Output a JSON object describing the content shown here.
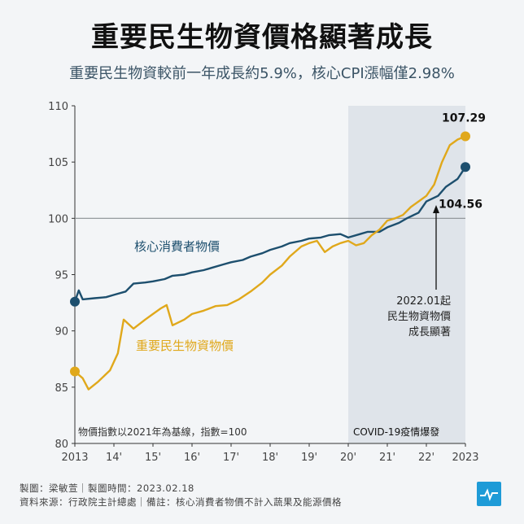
{
  "header": {
    "title": "重要民生物資價格顯著成長",
    "subtitle": "重要民生物資較前一年成長約5.9%，核心CPI漲幅僅2.98%"
  },
  "chart_data": {
    "type": "line",
    "x_ticks": [
      "2013",
      "14'",
      "15'",
      "16'",
      "17'",
      "18'",
      "19'",
      "20'",
      "21'",
      "22'",
      "2023"
    ],
    "ylim": [
      80,
      110
    ],
    "y_ticks": [
      80,
      85,
      90,
      95,
      100,
      105,
      110
    ],
    "grid": true,
    "reference_line": 100,
    "series": [
      {
        "name": "核心消費者物價",
        "color": "#1d4f6e",
        "label_value": "104.56",
        "values": [
          [
            2013.0,
            92.6
          ],
          [
            2013.1,
            93.6
          ],
          [
            2013.2,
            92.8
          ],
          [
            2013.5,
            92.9
          ],
          [
            2013.8,
            93.0
          ],
          [
            2014.0,
            93.2
          ],
          [
            2014.3,
            93.5
          ],
          [
            2014.5,
            94.2
          ],
          [
            2014.8,
            94.3
          ],
          [
            2015.0,
            94.4
          ],
          [
            2015.3,
            94.6
          ],
          [
            2015.5,
            94.9
          ],
          [
            2015.8,
            95.0
          ],
          [
            2016.0,
            95.2
          ],
          [
            2016.3,
            95.4
          ],
          [
            2016.5,
            95.6
          ],
          [
            2016.8,
            95.9
          ],
          [
            2017.0,
            96.1
          ],
          [
            2017.3,
            96.3
          ],
          [
            2017.5,
            96.6
          ],
          [
            2017.8,
            96.9
          ],
          [
            2018.0,
            97.2
          ],
          [
            2018.3,
            97.5
          ],
          [
            2018.5,
            97.8
          ],
          [
            2018.8,
            98.0
          ],
          [
            2019.0,
            98.2
          ],
          [
            2019.3,
            98.3
          ],
          [
            2019.5,
            98.5
          ],
          [
            2019.8,
            98.6
          ],
          [
            2020.0,
            98.3
          ],
          [
            2020.3,
            98.6
          ],
          [
            2020.5,
            98.8
          ],
          [
            2020.8,
            98.8
          ],
          [
            2021.0,
            99.2
          ],
          [
            2021.3,
            99.6
          ],
          [
            2021.5,
            100.0
          ],
          [
            2021.8,
            100.5
          ],
          [
            2022.0,
            101.5
          ],
          [
            2022.3,
            102.0
          ],
          [
            2022.5,
            102.8
          ],
          [
            2022.8,
            103.5
          ],
          [
            2023.0,
            104.56
          ]
        ]
      },
      {
        "name": "重要民生物資物價",
        "color": "#e0a81b",
        "label_value": "107.29",
        "values": [
          [
            2013.0,
            86.4
          ],
          [
            2013.2,
            85.8
          ],
          [
            2013.35,
            84.8
          ],
          [
            2013.6,
            85.5
          ],
          [
            2013.9,
            86.5
          ],
          [
            2014.1,
            88.0
          ],
          [
            2014.25,
            91.0
          ],
          [
            2014.5,
            90.2
          ],
          [
            2014.8,
            91.0
          ],
          [
            2015.0,
            91.5
          ],
          [
            2015.2,
            92.0
          ],
          [
            2015.35,
            92.3
          ],
          [
            2015.5,
            90.5
          ],
          [
            2015.8,
            91.0
          ],
          [
            2016.0,
            91.5
          ],
          [
            2016.3,
            91.8
          ],
          [
            2016.6,
            92.2
          ],
          [
            2016.9,
            92.3
          ],
          [
            2017.2,
            92.8
          ],
          [
            2017.5,
            93.5
          ],
          [
            2017.8,
            94.3
          ],
          [
            2018.0,
            95.0
          ],
          [
            2018.3,
            95.8
          ],
          [
            2018.5,
            96.6
          ],
          [
            2018.8,
            97.5
          ],
          [
            2019.0,
            97.8
          ],
          [
            2019.2,
            98.0
          ],
          [
            2019.4,
            97.0
          ],
          [
            2019.6,
            97.5
          ],
          [
            2019.8,
            97.8
          ],
          [
            2020.0,
            98.0
          ],
          [
            2020.2,
            97.6
          ],
          [
            2020.4,
            97.8
          ],
          [
            2020.6,
            98.5
          ],
          [
            2020.8,
            99.0
          ],
          [
            2021.0,
            99.8
          ],
          [
            2021.2,
            100.0
          ],
          [
            2021.4,
            100.3
          ],
          [
            2021.6,
            101.0
          ],
          [
            2021.8,
            101.5
          ],
          [
            2022.0,
            102.0
          ],
          [
            2022.2,
            103.0
          ],
          [
            2022.4,
            105.0
          ],
          [
            2022.6,
            106.5
          ],
          [
            2022.8,
            107.0
          ],
          [
            2023.0,
            107.29
          ]
        ]
      }
    ],
    "series_labels": [
      "核心消費者物價",
      "重要民生物資物價"
    ],
    "covid_shading": {
      "from": 2020.0,
      "to": 2023.0,
      "label": "COVID-19疫情爆發"
    },
    "annotation": {
      "x": 2022.0,
      "text_lines": [
        "2022.01起",
        "民生物資物價",
        "成長顯著"
      ]
    },
    "note": "物價指數以2021年為基線，指數=100"
  },
  "footer": {
    "line1": "製圖：梁敏萱｜製圖時間：2023.02.18",
    "line2": "資料來源：行政院主計總處｜備註：核心消費者物價不計入蔬果及能源價格"
  },
  "colors": {
    "core": "#1d4f6e",
    "food": "#e0a81b",
    "shade": "#dfe4ea",
    "logo": "#1e9bd7"
  },
  "icons": {
    "logo": "pulse-logo-icon"
  }
}
